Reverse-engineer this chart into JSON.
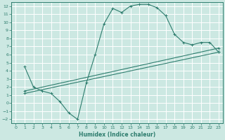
{
  "xlabel": "Humidex (Indice chaleur)",
  "ylabel": "",
  "bg_color": "#cce8e2",
  "grid_color": "#ffffff",
  "line_color": "#2e7d6e",
  "xlim": [
    -0.5,
    23.5
  ],
  "ylim": [
    -2.5,
    12.5
  ],
  "xticks": [
    0,
    1,
    2,
    3,
    4,
    5,
    6,
    7,
    8,
    9,
    10,
    11,
    12,
    13,
    14,
    15,
    16,
    17,
    18,
    19,
    20,
    21,
    22,
    23
  ],
  "yticks": [
    -2,
    -1,
    0,
    1,
    2,
    3,
    4,
    5,
    6,
    7,
    8,
    9,
    10,
    11,
    12
  ],
  "series1_x": [
    1,
    2,
    3,
    4,
    5,
    6,
    7,
    8,
    9,
    10,
    11,
    12,
    13,
    14,
    15,
    16,
    17,
    18,
    19,
    20,
    21,
    22,
    23
  ],
  "series1_y": [
    4.5,
    2.0,
    1.5,
    1.2,
    0.2,
    -1.2,
    -2.0,
    2.5,
    6.0,
    9.8,
    11.7,
    11.2,
    12.0,
    12.2,
    12.2,
    11.8,
    10.8,
    8.5,
    7.5,
    7.2,
    7.5,
    7.5,
    6.3
  ],
  "series2_x": [
    1,
    23
  ],
  "series2_y": [
    1.5,
    6.8
  ],
  "series3_x": [
    1,
    23
  ],
  "series3_y": [
    1.2,
    6.3
  ]
}
